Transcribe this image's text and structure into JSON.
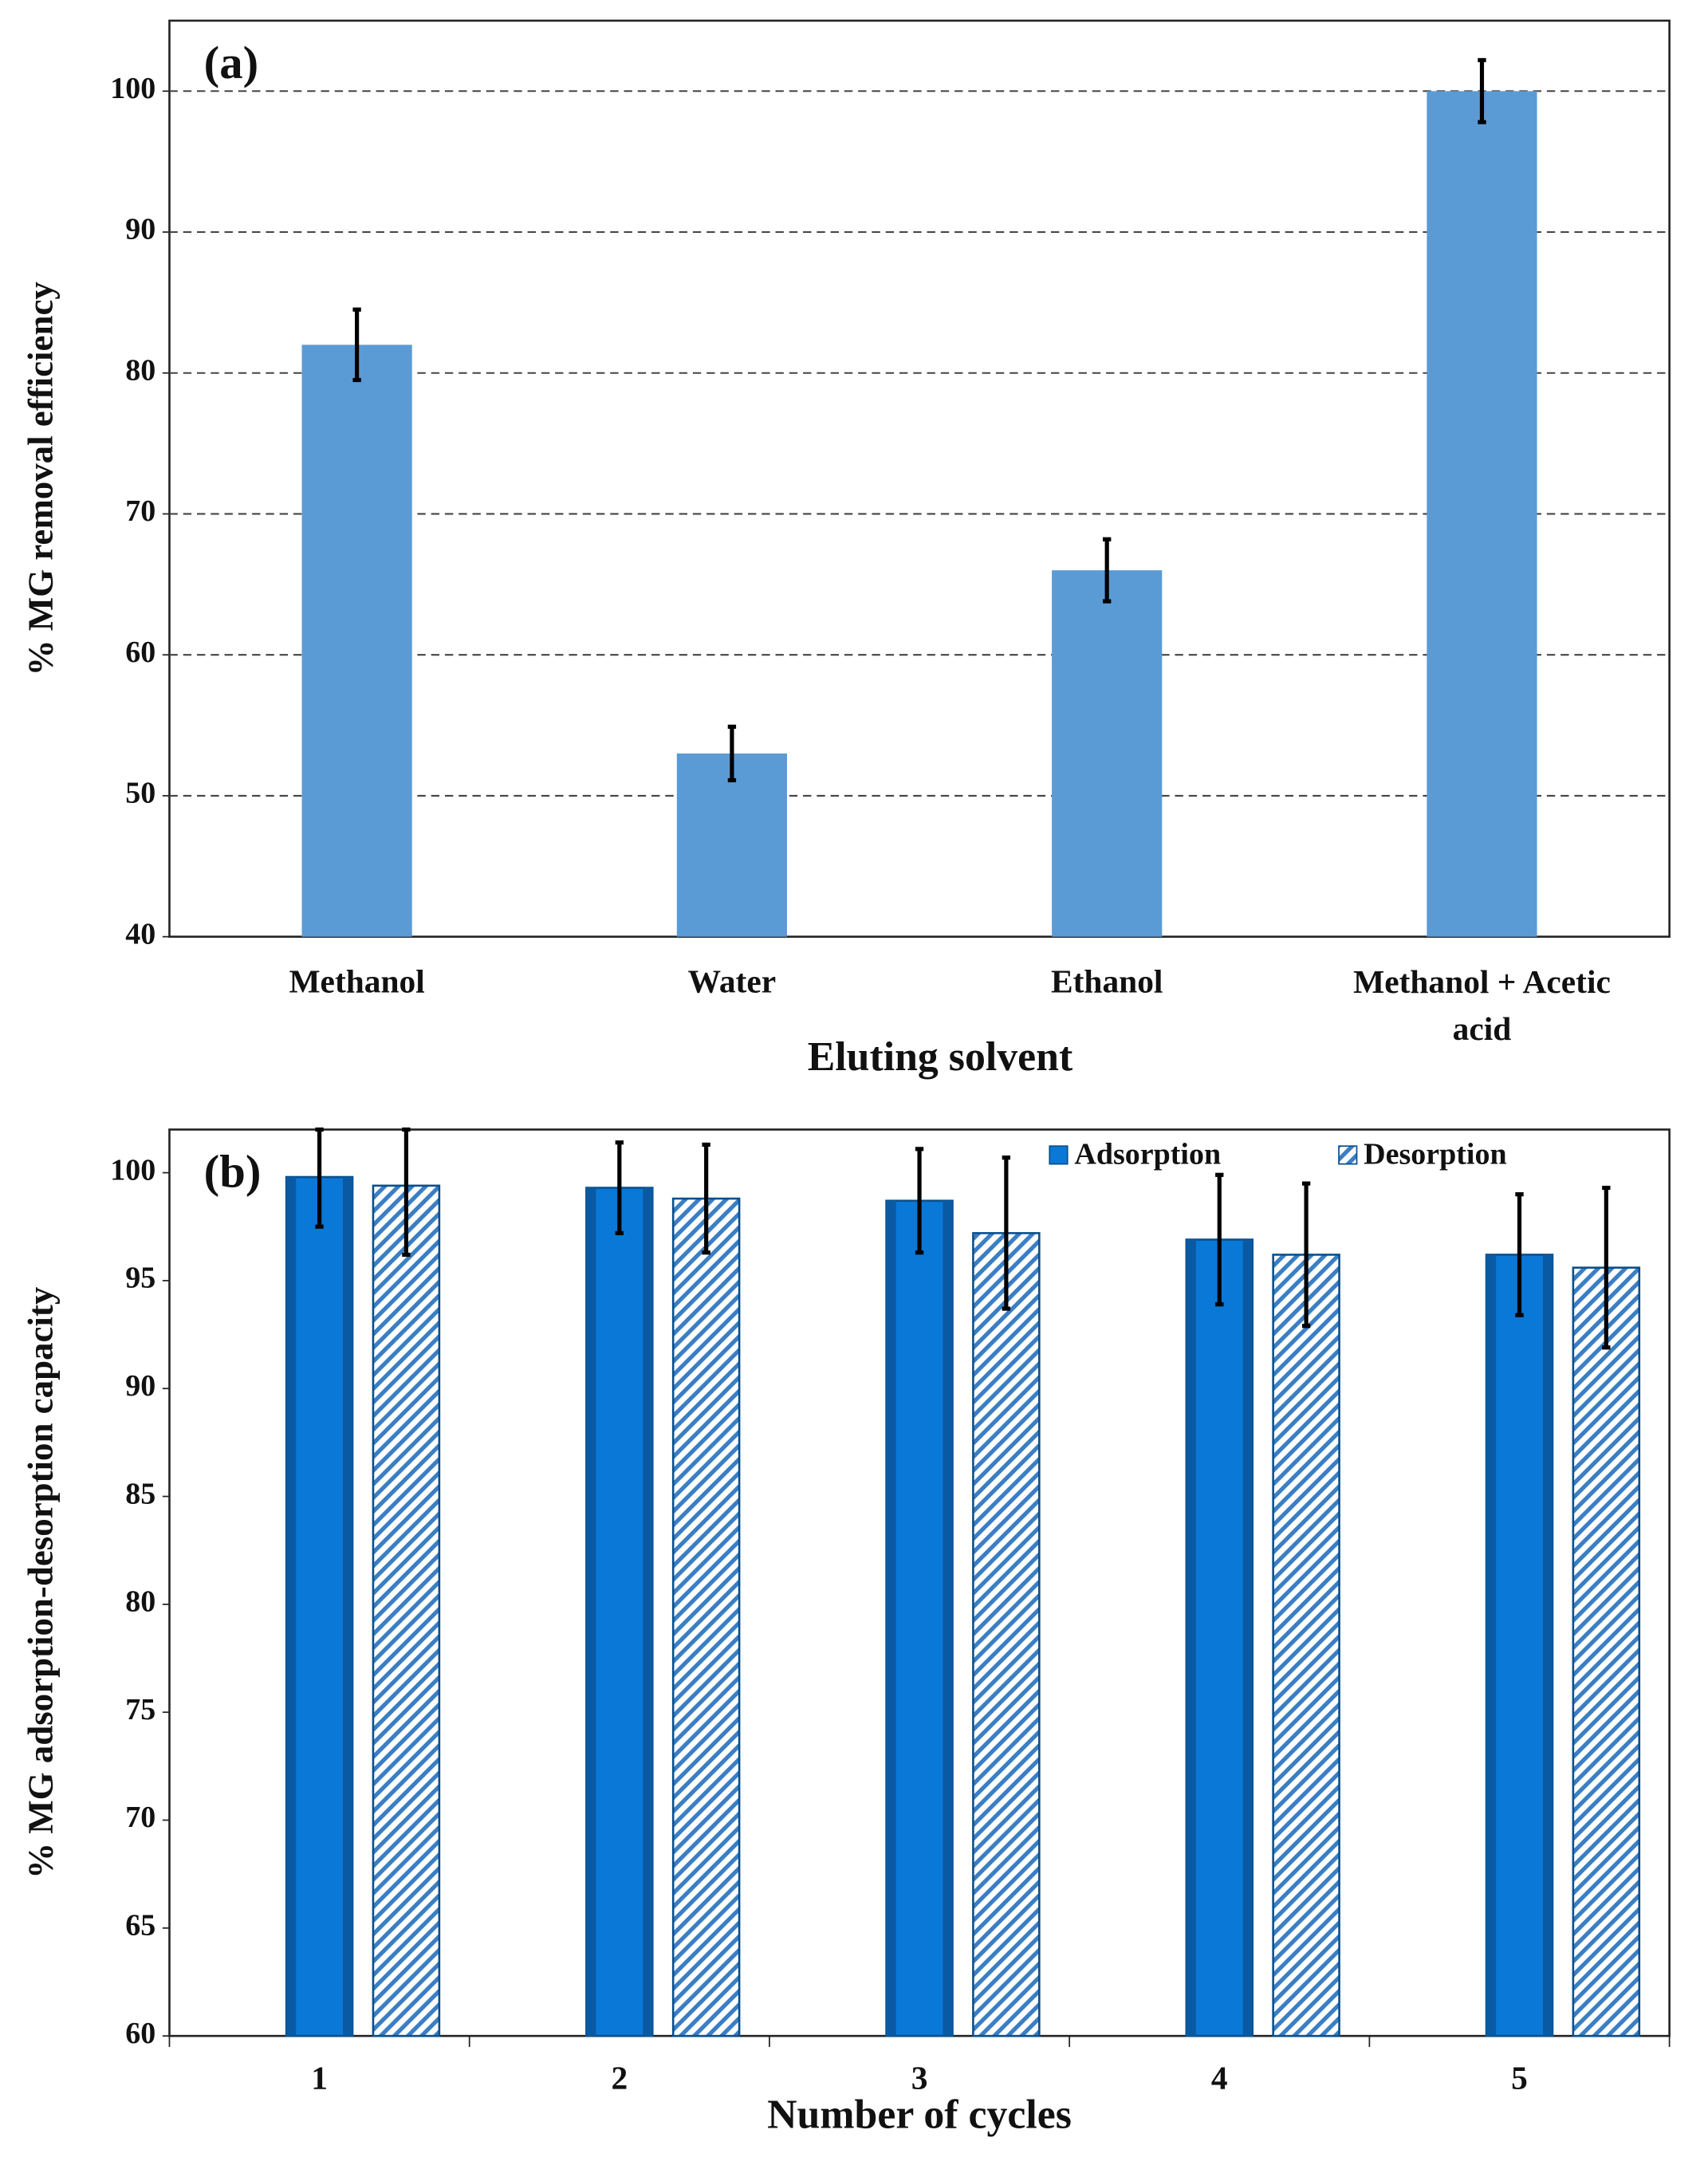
{
  "chart_data": [
    {
      "type": "bar",
      "annotation": "(a)",
      "x_label": "Eluting solvent",
      "y_label": "% MG removal efficiency",
      "categories": [
        "Methanol",
        "Water",
        "Ethanol",
        "Methanol + Acetic acid"
      ],
      "values": [
        82,
        53,
        66,
        100
      ],
      "errors": [
        2.5,
        1.9,
        2.2,
        2.2
      ],
      "color": "#5b9bd5",
      "ylim": [
        40,
        105
      ],
      "yticks": [
        40,
        50,
        60,
        70,
        80,
        90,
        100
      ],
      "grid": true
    },
    {
      "type": "grouped_bar",
      "annotation": "(b)",
      "x_label": "Number of cycles",
      "y_label": "% MG  adsorption-desorption capacity",
      "categories": [
        "1",
        "2",
        "3",
        "4",
        "5"
      ],
      "series": [
        {
          "name": "Adsorption",
          "color": "#0a78d7",
          "values": [
            99.8,
            99.3,
            98.7,
            96.9,
            96.2
          ],
          "errors": [
            2.3,
            2.1,
            2.4,
            3.0,
            2.8
          ]
        },
        {
          "name": "Desorption",
          "color": "#3a7ec4",
          "pattern": "hatch",
          "values": [
            99.4,
            98.8,
            97.2,
            96.2,
            95.6
          ],
          "errors": [
            3.2,
            2.5,
            3.5,
            3.3,
            3.7
          ]
        }
      ],
      "ylim": [
        60,
        102
      ],
      "yticks": [
        60,
        65,
        70,
        75,
        80,
        85,
        90,
        95,
        100
      ],
      "grid": false,
      "legend": "upper right"
    }
  ]
}
